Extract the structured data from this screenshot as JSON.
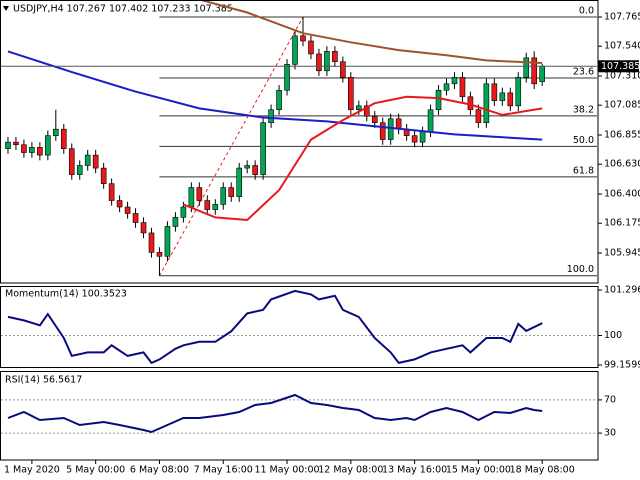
{
  "chart_data": [
    {
      "type": "candlestick",
      "title": "USDJPY,H4  107.267 107.402 107.233 107.385",
      "open": [
        106.75,
        106.8,
        106.78,
        106.72,
        106.76,
        106.7,
        106.85,
        106.9,
        106.75,
        106.55,
        106.62,
        106.7,
        106.6,
        106.48,
        106.35,
        106.3,
        106.25,
        106.18,
        106.1,
        105.95,
        105.92,
        106.15,
        106.22,
        106.3,
        106.45,
        106.35,
        106.28,
        106.32,
        106.45,
        106.38,
        106.6,
        106.62,
        106.55,
        106.95,
        107.05,
        107.2,
        107.4,
        107.62,
        107.58,
        107.48,
        107.35,
        107.5,
        107.42,
        107.3,
        107.05,
        107.08,
        107.0,
        106.95,
        106.82,
        106.98,
        106.9,
        106.85,
        106.8,
        106.88,
        107.05,
        107.2,
        107.25,
        107.3,
        107.15,
        107.05,
        106.95,
        107.25,
        107.12,
        107.18,
        107.08,
        107.3,
        107.45,
        107.267
      ],
      "high": [
        106.84,
        106.84,
        106.82,
        106.8,
        106.8,
        106.89,
        107.05,
        106.94,
        106.79,
        106.66,
        106.74,
        106.74,
        106.64,
        106.52,
        106.39,
        106.34,
        106.29,
        106.22,
        106.14,
        105.99,
        106.19,
        106.26,
        106.34,
        106.49,
        106.49,
        106.39,
        106.36,
        106.49,
        106.49,
        106.64,
        106.66,
        106.66,
        106.99,
        107.09,
        107.24,
        107.44,
        107.66,
        107.765,
        107.62,
        107.52,
        107.54,
        107.54,
        107.46,
        107.34,
        107.12,
        107.12,
        107.04,
        106.99,
        107.02,
        107.02,
        106.94,
        106.89,
        106.92,
        107.09,
        107.24,
        107.29,
        107.34,
        107.34,
        107.19,
        107.09,
        107.29,
        107.29,
        107.22,
        107.22,
        107.34,
        107.49,
        107.5,
        107.402
      ],
      "low": [
        106.71,
        106.74,
        106.68,
        106.68,
        106.66,
        106.66,
        106.81,
        106.71,
        106.51,
        106.51,
        106.58,
        106.56,
        106.44,
        106.31,
        106.26,
        106.21,
        106.14,
        106.06,
        105.91,
        105.77,
        105.88,
        106.11,
        106.18,
        106.26,
        106.31,
        106.24,
        106.24,
        106.28,
        106.34,
        106.34,
        106.56,
        106.51,
        106.51,
        106.91,
        107.01,
        107.16,
        107.36,
        107.54,
        107.44,
        107.31,
        107.31,
        107.38,
        107.26,
        107.01,
        107.01,
        106.96,
        106.91,
        106.78,
        106.78,
        106.86,
        106.81,
        106.76,
        106.76,
        106.84,
        107.01,
        107.16,
        107.21,
        107.11,
        107.01,
        106.91,
        106.91,
        107.08,
        107.08,
        107.04,
        107.04,
        107.26,
        107.21,
        107.233
      ],
      "close": [
        106.8,
        106.78,
        106.72,
        106.76,
        106.7,
        106.85,
        106.9,
        106.75,
        106.55,
        106.62,
        106.7,
        106.6,
        106.48,
        106.35,
        106.3,
        106.25,
        106.18,
        106.1,
        105.95,
        105.92,
        106.15,
        106.22,
        106.3,
        106.45,
        106.35,
        106.28,
        106.32,
        106.45,
        106.38,
        106.6,
        106.62,
        106.55,
        106.95,
        107.05,
        107.2,
        107.4,
        107.62,
        107.58,
        107.48,
        107.35,
        107.5,
        107.42,
        107.3,
        107.05,
        107.08,
        107.0,
        106.95,
        106.82,
        106.98,
        106.9,
        106.85,
        106.8,
        106.88,
        107.05,
        107.2,
        107.25,
        107.3,
        107.15,
        107.05,
        106.95,
        107.25,
        107.12,
        107.18,
        107.08,
        107.3,
        107.45,
        107.25,
        107.385
      ],
      "up_color": "#00a651",
      "down_color": "#e8191b",
      "xlim": [
        -1,
        74
      ],
      "xticks": [
        {
          "value": 3,
          "label": "1 May 2020"
        },
        {
          "value": 11,
          "label": "5 May 00:00"
        },
        {
          "value": 19,
          "label": "6 May 08:00"
        },
        {
          "value": 27,
          "label": "7 May 16:00"
        },
        {
          "value": 35,
          "label": "11 May 00:00"
        },
        {
          "value": 43,
          "label": "12 May 08:00"
        },
        {
          "value": 51,
          "label": "13 May 16:00"
        },
        {
          "value": 59,
          "label": "15 May 00:00"
        },
        {
          "value": 67,
          "label": "18 May 08:00"
        }
      ],
      "ylim": [
        105.714,
        107.896
      ],
      "yticks": [
        107.765,
        {
          "value": 107.54,
          "label": "107.540"
        },
        {
          "value": 107.31,
          "label": "107.310"
        },
        107.085,
        106.855,
        {
          "value": 106.63,
          "label": "106.630"
        },
        {
          "value": 106.4,
          "label": "106.400"
        },
        106.175,
        105.945
      ],
      "series": [
        {
          "color": "#a0522d",
          "x": [
            24,
            30,
            37,
            43,
            49,
            55,
            60,
            67
          ],
          "values": [
            107.9,
            107.8,
            107.64,
            107.57,
            107.51,
            107.47,
            107.43,
            107.41
          ]
        },
        {
          "color": "#1c1cc8",
          "x": [
            0,
            8,
            16,
            24,
            32,
            40,
            48,
            56,
            67
          ],
          "values": [
            107.5,
            107.34,
            107.19,
            107.06,
            106.99,
            106.96,
            106.91,
            106.86,
            106.82
          ]
        },
        {
          "color": "#e8191b",
          "x": [
            22,
            26,
            30,
            34,
            38,
            42,
            46,
            50,
            54,
            58,
            62,
            67
          ],
          "values": [
            106.32,
            106.22,
            106.2,
            106.43,
            106.82,
            106.97,
            107.1,
            107.15,
            107.14,
            107.09,
            107.01,
            107.06
          ]
        }
      ],
      "fib": {
        "from_index": 19,
        "to_index": 37,
        "color": "#333333",
        "line_color": "#e8191b",
        "levels": [
          {
            "value": 0,
            "label": "0.0"
          },
          23.6,
          38.2,
          {
            "value": 50,
            "label": "50.0"
          },
          61.8,
          {
            "value": 100,
            "label": "100.0"
          }
        ]
      }
    },
    {
      "type": "line",
      "title": "Momentum(14) 100.3523",
      "color": "#0a0a80",
      "x": [
        0,
        2,
        4,
        5,
        7,
        8,
        10,
        12,
        13,
        15,
        17,
        18,
        19,
        21,
        22,
        24,
        26,
        28,
        30,
        32,
        33,
        36,
        38,
        39,
        41,
        42,
        44,
        46,
        48,
        49,
        51,
        53,
        55,
        57,
        58,
        60,
        62,
        63,
        64,
        65,
        67
      ],
      "values": [
        100.53,
        100.43,
        100.29,
        100.61,
        99.93,
        99.42,
        99.52,
        99.52,
        99.72,
        99.42,
        99.52,
        99.22,
        99.32,
        99.62,
        99.72,
        99.82,
        99.82,
        100.12,
        100.63,
        100.73,
        101.03,
        101.27,
        101.17,
        101.03,
        101.13,
        100.73,
        100.53,
        99.93,
        99.52,
        99.22,
        99.32,
        99.52,
        99.62,
        99.72,
        99.52,
        99.93,
        99.93,
        99.82,
        100.33,
        100.13,
        100.35
      ],
      "ylim": [
        99.1599,
        101.2964
      ],
      "label_ylim": true,
      "yticks": [
        100
      ],
      "grid": "dotted"
    },
    {
      "type": "line",
      "title": "RSI(14) 56.5617",
      "color": "#0a0a80",
      "x": [
        0,
        2,
        4,
        7,
        9,
        12,
        14,
        17,
        18,
        20,
        22,
        24,
        27,
        29,
        31,
        33,
        36,
        38,
        40,
        42,
        44,
        46,
        48,
        50,
        51,
        53,
        55,
        57,
        59,
        61,
        63,
        65,
        66,
        67
      ],
      "values": [
        48.2,
        55.4,
        45.8,
        48.2,
        39.8,
        43.4,
        39.8,
        33.7,
        31.3,
        39.8,
        48.2,
        48.2,
        51.8,
        55.4,
        63.9,
        66.3,
        75.9,
        66.3,
        63.9,
        60.2,
        57.8,
        48.2,
        45.8,
        48.2,
        45.8,
        55.4,
        60.2,
        55.4,
        45.8,
        55.4,
        54.2,
        60.2,
        57.8,
        56.6
      ],
      "ylim": [
        0,
        100
      ],
      "yticks": [
        70,
        30
      ],
      "grid": "dotted"
    }
  ]
}
